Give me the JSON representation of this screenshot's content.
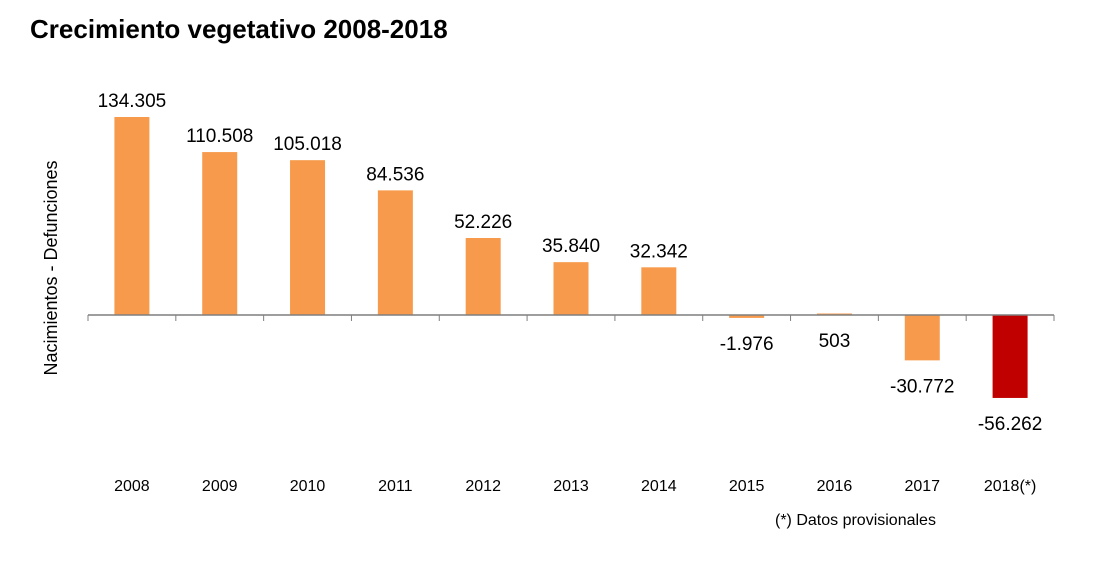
{
  "title": "Crecimiento vegetativo 2008-2018",
  "footnote": "(*)  Datos provisionales",
  "colors": {
    "bar": "#F79A4B",
    "highlight": "#C00000",
    "axis": "#7F7F7F"
  },
  "chart_data": {
    "type": "bar",
    "title": "Crecimiento vegetativo 2008-2018",
    "xlabel": "",
    "ylabel": "Nacimientos - Defunciones",
    "categories": [
      "2008",
      "2009",
      "2010",
      "2011",
      "2012",
      "2013",
      "2014",
      "2015",
      "2016",
      "2017",
      "2018(*)"
    ],
    "values": [
      134305,
      110508,
      105018,
      84536,
      52226,
      35840,
      32342,
      -1976,
      503,
      -30772,
      -56262
    ],
    "data_labels": [
      "134.305",
      "110.508",
      "105.018",
      "84.536",
      "52.226",
      "35.840",
      "32.342",
      "-1.976",
      "503",
      "-30.772",
      "-56.262"
    ],
    "highlight_index": 10,
    "grid": false,
    "legend": "none"
  }
}
